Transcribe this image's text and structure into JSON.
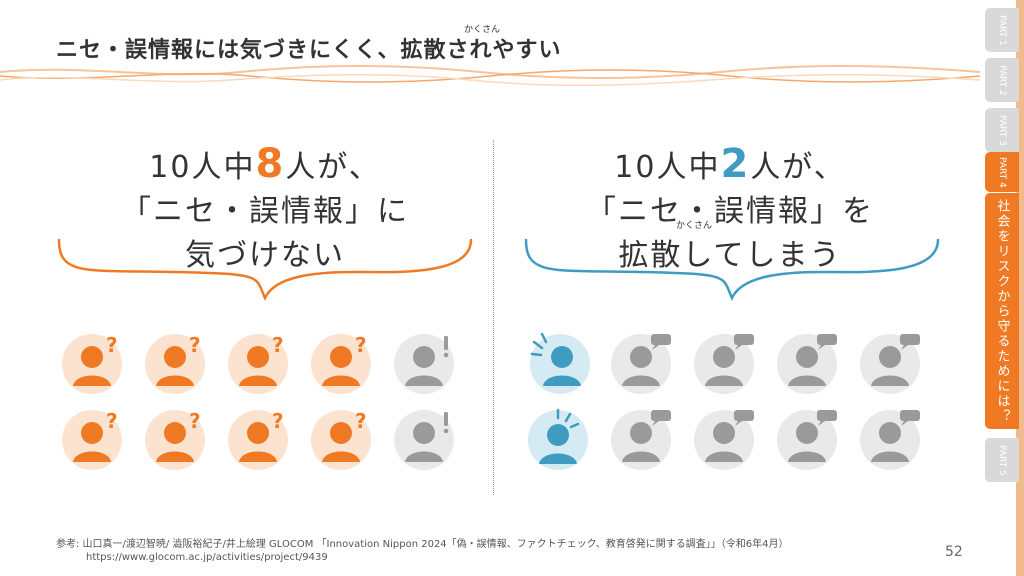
{
  "title": {
    "text": "ニセ・誤情報には気づきにくく、拡散されやすい",
    "ruby": "かくさん"
  },
  "left": {
    "line1_pre": "10人中",
    "line1_num": "8",
    "line1_post": "人が、",
    "line2": "「ニセ・誤情報」に",
    "line3": "気づけない",
    "icons_top": [
      "confused",
      "confused",
      "confused",
      "confused",
      "aware"
    ],
    "icons_bottom": [
      "confused",
      "confused",
      "confused",
      "confused",
      "aware"
    ]
  },
  "right": {
    "line1_pre": "10人中",
    "line1_num": "2",
    "line1_post": "人が、",
    "line2": "「ニセ・誤情報」を",
    "line3": "拡散してしまう",
    "ruby": "かくさん",
    "icons_top": [
      "spreader",
      "receiver",
      "receiver",
      "receiver",
      "receiver"
    ],
    "icons_bottom": [
      "spreader",
      "receiver",
      "receiver",
      "receiver",
      "receiver"
    ]
  },
  "footnote": {
    "line1": "参考: 山口真一/渡辺智暁/ 澁阪裕紀子/井上絵理 GLOCOM 「Innovation Nippon 2024「偽・誤情報、ファクトチェック、教育啓発に関する調査」」（令和6年4月）",
    "line2": "https://www.glocom.ac.jp/activities/project/9439"
  },
  "page_number": "52",
  "nav": {
    "tabs": [
      {
        "label": "PART 1"
      },
      {
        "label": "PART 2"
      },
      {
        "label": "PART 3"
      },
      {
        "label": "PART 4"
      },
      {
        "label": "PART 5"
      }
    ],
    "active_section": "社会をリスクから守るためには？"
  },
  "colors": {
    "orange": "#f07a24",
    "orange_light": "#fbe3d0",
    "blue": "#3f9cc0",
    "blue_light": "#d5ebf4",
    "gray": "#9a9a9a",
    "gray_light": "#e9e9e9"
  }
}
